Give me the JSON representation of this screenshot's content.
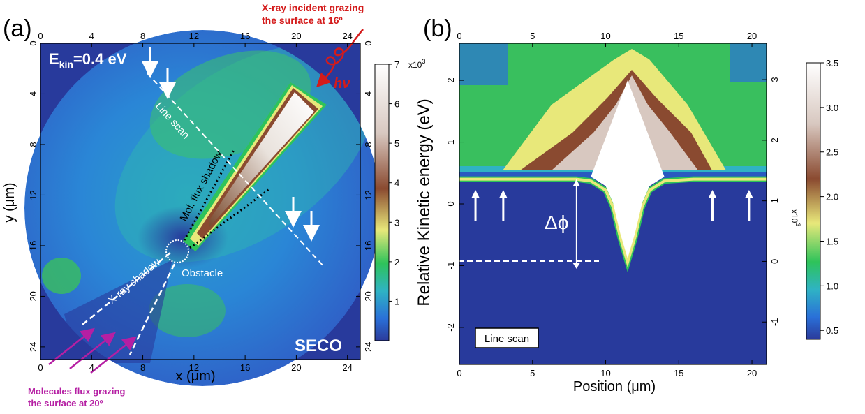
{
  "chart_data": [
    {
      "type": "heatmap",
      "panel_label": "(a)",
      "title": "",
      "xlabel": "x (μm)",
      "ylabel": "y (μm)",
      "xlim": [
        0,
        25
      ],
      "ylim": [
        25,
        0
      ],
      "x_ticks": [
        0,
        4,
        8,
        12,
        16,
        20,
        24
      ],
      "y_ticks": [
        0,
        4,
        8,
        12,
        16,
        20,
        24
      ],
      "top_ticks": [
        0,
        4,
        8,
        12,
        16,
        20,
        24
      ],
      "right_ticks": [
        0,
        4,
        8,
        12,
        16,
        20,
        24
      ],
      "colorbar": {
        "range": [
          0,
          7
        ],
        "ticks": [
          1,
          2,
          3,
          4,
          5,
          6,
          7
        ],
        "multiplier_label": "x10",
        "multiplier_exp": "3"
      },
      "annotations": {
        "energy_main": "E",
        "energy_sub": "kin",
        "energy_value": "=0.4 eV",
        "line_scan": "Line scan",
        "mol_flux_shadow": "Mol. flux shadow",
        "xray_shadow": "X-ray shadow",
        "obstacle": "Obstacle",
        "seco": "SECO",
        "xray_incident_line1": "X-ray incident grazing",
        "xray_incident_line2": "the surface  at 16º",
        "hv": "hν",
        "molecules_line1": "Molecules flux grazing",
        "molecules_line2": "the surface  at 20º"
      },
      "features": {
        "field_of_view_circle": {
          "center": [
            12.3,
            12.7
          ],
          "radius": 12.4
        },
        "obstacle_circle": {
          "center": [
            11.0,
            16.3
          ],
          "radius": 0.9
        },
        "bright_streak": {
          "from": [
            13.4,
            13.9
          ],
          "to": [
            21.6,
            4.4
          ],
          "peak_intensity": 6.8
        },
        "line_scan_line": {
          "from": [
            8.2,
            2.2
          ],
          "to": [
            22.5,
            17.3
          ]
        },
        "mol_shadow_upper_edge": {
          "from": [
            11.5,
            15.6
          ],
          "to": [
            15.3,
            8.0
          ]
        },
        "mol_shadow_lower_edge": {
          "from": [
            11.8,
            16.1
          ],
          "to": [
            18.3,
            11.7
          ]
        },
        "xray_shadow_upper_edge": {
          "from": [
            10.4,
            16.8
          ],
          "to": [
            3.3,
            21.5
          ]
        },
        "xray_shadow_lower_edge": {
          "from": [
            10.7,
            17.5
          ],
          "to": [
            7.0,
            24.3
          ]
        },
        "down_arrows_x": [
          8.6,
          9.8,
          19.6,
          21.3
        ]
      }
    },
    {
      "type": "heatmap",
      "panel_label": "(b)",
      "title": "",
      "xlabel": "Position (μm)",
      "ylabel": "Relative Kinetic energy (eV)",
      "xlim": [
        0,
        21
      ],
      "ylim": [
        -2.6,
        2.6
      ],
      "x_ticks": [
        0,
        5,
        10,
        15,
        20
      ],
      "y_ticks": [
        -2,
        -1,
        0,
        1,
        2
      ],
      "top_ticks": [
        0,
        5,
        10,
        15,
        20
      ],
      "right_axis": {
        "ticks": [
          -1,
          0,
          1,
          2,
          3
        ],
        "label": "x10",
        "label_exp": "3"
      },
      "colorbar": {
        "range": [
          0.4,
          3.5
        ],
        "ticks": [
          "0.5",
          "1.0",
          "1.5",
          "2.0",
          "2.5",
          "3.0",
          "3.5"
        ]
      },
      "annotations": {
        "legend_box": "Line scan",
        "delta_phi": "Δϕ"
      },
      "profile": {
        "x": [
          0,
          2,
          4,
          6,
          8,
          9,
          10,
          10.5,
          11,
          11.5,
          12,
          12.5,
          13,
          14,
          16,
          18,
          21
        ],
        "cutoff_energy": [
          0.4,
          0.4,
          0.4,
          0.4,
          0.4,
          0.37,
          0.22,
          -0.05,
          -0.55,
          -0.95,
          -0.55,
          -0.05,
          0.22,
          0.37,
          0.4,
          0.4,
          0.4
        ]
      },
      "delta_phi_arrow": {
        "x": 8.0,
        "from": 0.4,
        "to": -1.05
      },
      "dashed_reference_energy": -1.05,
      "up_arrows_x": [
        1.1,
        3.0,
        17.3,
        19.8
      ]
    }
  ]
}
